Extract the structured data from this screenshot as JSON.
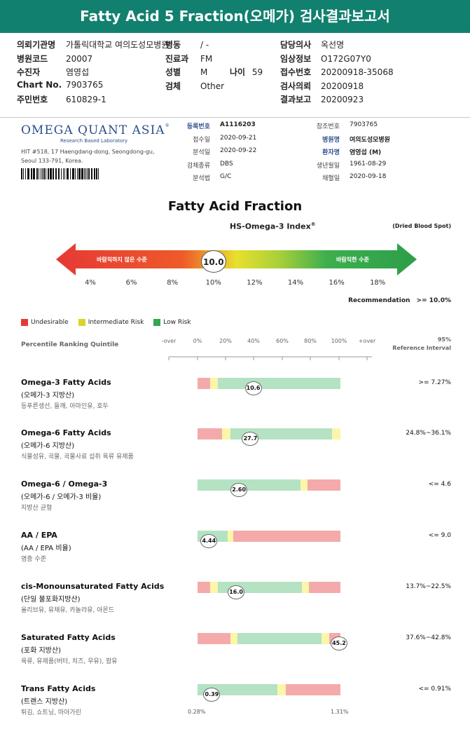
{
  "header": {
    "title": "Fatty Acid 5 Fraction(오메가) 검사결과보고서"
  },
  "patient": {
    "col1": [
      {
        "label": "의뢰기관명",
        "value": "가톨릭대학교 여의도성모병원"
      },
      {
        "label": "병원코드",
        "value": "20007"
      },
      {
        "label": "수진자",
        "value": "염영섭"
      },
      {
        "label": "Chart No.",
        "value": "7903765"
      },
      {
        "label": "주민번호",
        "value": "610829-1"
      }
    ],
    "col2": [
      {
        "label": "병동",
        "value": "/ -"
      },
      {
        "label": "진료과",
        "value": "FM"
      },
      {
        "label": "성별",
        "value": "M"
      },
      {
        "label": "검체",
        "value": "Other"
      }
    ],
    "age": {
      "label": "나이",
      "value": "59"
    },
    "col3": [
      {
        "label": "담당의사",
        "value": "옥선명"
      },
      {
        "label": "임상정보",
        "value": "O172G07Y0"
      },
      {
        "label": "접수번호",
        "value": "20200918-35068"
      },
      {
        "label": "검사의뢰",
        "value": "20200918"
      },
      {
        "label": "결과보고",
        "value": "20200923"
      }
    ]
  },
  "lab": {
    "logo_title": "OMEGA QUANT ASIA",
    "logo_sub": "Research Based Laboratory",
    "address1": "HIT #518, 17 Haengdang-dong, Seongdong-gu,",
    "address2": "Seoul 133-791, Korea.",
    "left": [
      {
        "label": "등록번호",
        "value": "A1116203"
      },
      {
        "label": "접수일",
        "value": "2020-09-21"
      },
      {
        "label": "분석일",
        "value": "2020-09-22"
      },
      {
        "label": "검체종류",
        "value": "DBS"
      },
      {
        "label": "분석법",
        "value": "G/C"
      }
    ],
    "right": [
      {
        "label": "참조번호",
        "value": "7903765"
      },
      {
        "label": "병원명",
        "value": "여의도성모병원"
      },
      {
        "label": "환자명",
        "value": "염영섭 (M)"
      },
      {
        "label": "생년월일",
        "value": "1961-08-29"
      },
      {
        "label": "채혈일",
        "value": "2020-09-18"
      }
    ]
  },
  "index": {
    "title": "Fatty Acid Fraction",
    "subtitle": "HS-Omega-3 Index",
    "subtitle_sup": "®",
    "sample_type": "(Dried Blood Spot)",
    "left_text": "바람직하지 않은 수준",
    "right_text": "바람직한 수준",
    "value": 10.0,
    "value_text": "10.0",
    "ticks": [
      "4%",
      "6%",
      "8%",
      "10%",
      "12%",
      "14%",
      "16%",
      "18%"
    ],
    "recommendation_label": "Recommendation",
    "recommendation_value": ">= 10.0%"
  },
  "legend": [
    {
      "label": "Undesirable",
      "color": "#e53935"
    },
    {
      "label": "Intermediate Risk",
      "color": "#d6d62a"
    },
    {
      "label": "Low Risk",
      "color": "#31a84f"
    }
  ],
  "percentile": {
    "label": "Percentile Ranking Quintile",
    "ticks": [
      "-over",
      "0%",
      "20%",
      "40%",
      "60%",
      "80%",
      "100%",
      "+over"
    ],
    "ref_label_1": "95%",
    "ref_label_2": "Reference Interval"
  },
  "rows": [
    {
      "name": "Omega-3 Fatty Acids",
      "kor": "(오메가-3 지방산)",
      "food": "등푸른생선, 들깨, 아마인유, 호두",
      "ref": ">= 7.27%",
      "value": "10.6",
      "pos": 0.39,
      "segments": [
        {
          "w": 0.09,
          "c": "#f4aaaa"
        },
        {
          "w": 0.05,
          "c": "#fbf6a8"
        },
        {
          "w": 0.86,
          "c": "#b4e2c3"
        }
      ]
    },
    {
      "name": "Omega-6 Fatty Acids",
      "kor": "(오메가-6 지방산)",
      "food": "식물성유, 곡물, 곡물사료 섭취 육류 유제품",
      "ref": "24.8%~36.1%",
      "value": "27.7",
      "pos": 0.37,
      "segments": [
        {
          "w": 0.17,
          "c": "#f4aaaa"
        },
        {
          "w": 0.06,
          "c": "#fbf6a8"
        },
        {
          "w": 0.71,
          "c": "#b4e2c3"
        },
        {
          "w": 0.06,
          "c": "#fbf6a8"
        }
      ]
    },
    {
      "name": "Omega-6 / Omega-3",
      "kor": "(오메가-6 / 오메가-3 비율)",
      "food": "지방산 균형",
      "ref": "<= 4.6",
      "value": "2.60",
      "pos": 0.29,
      "segments": [
        {
          "w": 0.72,
          "c": "#b4e2c3"
        },
        {
          "w": 0.05,
          "c": "#fbf6a8"
        },
        {
          "w": 0.23,
          "c": "#f4aaaa"
        }
      ]
    },
    {
      "name": "AA / EPA",
      "kor": "(AA / EPA 비율)",
      "food": "염증 수준",
      "ref": "<= 9.0",
      "value": "4.44",
      "pos": 0.08,
      "segments": [
        {
          "w": 0.21,
          "c": "#b4e2c3"
        },
        {
          "w": 0.04,
          "c": "#fbf6a8"
        },
        {
          "w": 0.75,
          "c": "#f4aaaa"
        }
      ]
    },
    {
      "name": "cis-Monounsaturated Fatty Acids",
      "kor": "(단일 불포화지방산)",
      "food": "올리브유, 유채유, 카놀라유, 아몬드",
      "ref": "13.7%~22.5%",
      "value": "16.0",
      "pos": 0.27,
      "segments": [
        {
          "w": 0.09,
          "c": "#f4aaaa"
        },
        {
          "w": 0.05,
          "c": "#fbf6a8"
        },
        {
          "w": 0.59,
          "c": "#b4e2c3"
        },
        {
          "w": 0.05,
          "c": "#fbf6a8"
        },
        {
          "w": 0.22,
          "c": "#f4aaaa"
        }
      ]
    },
    {
      "name": "Saturated Fatty Acids",
      "kor": "(포화 지방산)",
      "food": "육류, 유제품(버터, 치즈, 우유), 팜유",
      "ref": "37.6%~42.8%",
      "value": "45.2",
      "pos": 0.99,
      "segments": [
        {
          "w": 0.23,
          "c": "#f4aaaa"
        },
        {
          "w": 0.05,
          "c": "#fbf6a8"
        },
        {
          "w": 0.59,
          "c": "#b4e2c3"
        },
        {
          "w": 0.05,
          "c": "#fbf6a8"
        },
        {
          "w": 0.08,
          "c": "#f4aaaa"
        }
      ]
    },
    {
      "name": "Trans Fatty Acids",
      "kor": "(트랜스 지방산)",
      "food": "튀김, 쇼트닝, 마아가린",
      "ref": "<= 0.91%",
      "value": "0.39",
      "pos": 0.1,
      "segments": [
        {
          "w": 0.56,
          "c": "#b4e2c3"
        },
        {
          "w": 0.06,
          "c": "#fbf6a8"
        },
        {
          "w": 0.38,
          "c": "#f4aaaa"
        }
      ]
    }
  ],
  "trans_scale": {
    "min": "0.28%",
    "max": "1.31%"
  }
}
